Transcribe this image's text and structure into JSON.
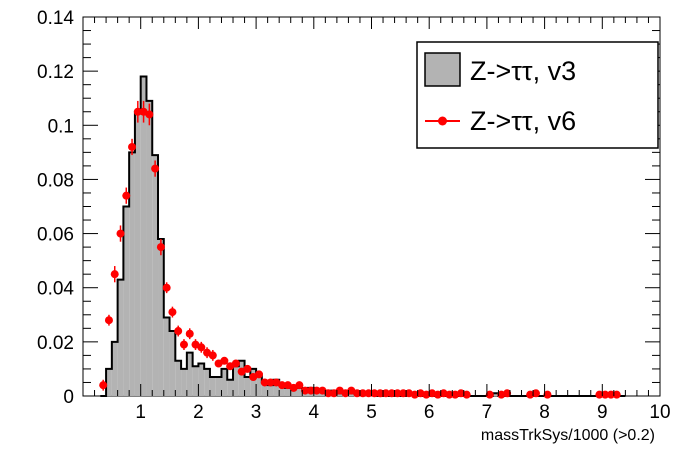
{
  "chart_data": {
    "type": "histogram",
    "title": "",
    "xlabel": "massTrkSys/1000 (>0.2)",
    "ylabel": "",
    "xlim": [
      0,
      10
    ],
    "ylim": [
      0,
      0.14
    ],
    "x_ticks": [
      "1",
      "2",
      "3",
      "4",
      "5",
      "6",
      "7",
      "8",
      "9",
      "10"
    ],
    "y_ticks": [
      "0",
      "0.02",
      "0.04",
      "0.06",
      "0.08",
      "0.1",
      "0.12",
      "0.14"
    ],
    "grid": false,
    "legend_position": "top-right",
    "colors": {
      "v3_fill": "#b3b3b3",
      "v3_line": "#000000",
      "v6": "#ff0000"
    },
    "series": [
      {
        "name": "Z->ττ, v3",
        "style": "filled-step",
        "bin_width": 0.1,
        "bin_starts": [
          0.3,
          0.4,
          0.5,
          0.6,
          0.7,
          0.8,
          0.9,
          1.0,
          1.1,
          1.2,
          1.3,
          1.4,
          1.5,
          1.6,
          1.7,
          1.8,
          1.9,
          2.0,
          2.1,
          2.2,
          2.3,
          2.4,
          2.5,
          2.6,
          2.7,
          2.8,
          2.9,
          3.0,
          3.1,
          3.2,
          3.3,
          3.4,
          3.5,
          3.6,
          3.7,
          3.8,
          3.9,
          4.0,
          4.1,
          4.2,
          4.3,
          4.4,
          4.5,
          4.6,
          4.7,
          4.8,
          4.9,
          5.0,
          5.1,
          5.2,
          5.3,
          5.4,
          5.5,
          5.6,
          5.7,
          5.8,
          5.9,
          6.0,
          6.1,
          6.2,
          6.3,
          6.4,
          6.5,
          6.6,
          6.7,
          6.8,
          6.9,
          7.0,
          7.1,
          7.2,
          7.3,
          7.4,
          7.5,
          7.6,
          7.7,
          7.8,
          7.9,
          8.0,
          8.1,
          8.2,
          8.3,
          8.4,
          8.5,
          8.6,
          8.7,
          8.8,
          8.9,
          9.0,
          9.1,
          9.2,
          9.3
        ],
        "values": [
          0.0,
          0.01,
          0.02,
          0.043,
          0.07,
          0.09,
          0.105,
          0.118,
          0.109,
          0.089,
          0.058,
          0.029,
          0.024,
          0.013,
          0.01,
          0.016,
          0.011,
          0.012,
          0.01,
          0.007,
          0.007,
          0.01,
          0.006,
          0.011,
          0.013,
          0.007,
          0.01,
          0.008,
          0.005,
          0.004,
          0.006,
          0.004,
          0.003,
          0.003,
          0.003,
          0.002,
          0.003,
          0.002,
          0.002,
          0.001,
          0.002,
          0.001,
          0.001,
          0.001,
          0.001,
          0.001,
          0.001,
          0.001,
          0.0,
          0.001,
          0.0,
          0.001,
          0.0,
          0.001,
          0.001,
          0.0,
          0.001,
          0.0,
          0.0,
          0.0,
          0.001,
          0.0,
          0.0,
          0.0,
          0.0,
          0.0,
          0.0,
          0.0,
          0.001,
          0.0,
          0.0,
          0.0,
          0.0,
          0.0,
          0.0,
          0.0,
          0.0,
          0.0,
          0.0,
          0.0,
          0.0,
          0.0,
          0.0,
          0.0,
          0.0,
          0.0,
          0.0,
          0.0,
          0.0,
          0.0,
          0.0
        ]
      },
      {
        "name": "Z->ττ, v6",
        "style": "points-with-errors",
        "x": [
          0.35,
          0.45,
          0.55,
          0.65,
          0.75,
          0.85,
          0.95,
          1.05,
          1.15,
          1.25,
          1.35,
          1.45,
          1.55,
          1.65,
          1.75,
          1.85,
          1.95,
          2.05,
          2.15,
          2.25,
          2.35,
          2.45,
          2.55,
          2.65,
          2.75,
          2.85,
          2.95,
          3.05,
          3.15,
          3.25,
          3.35,
          3.45,
          3.55,
          3.65,
          3.75,
          3.85,
          3.95,
          4.05,
          4.15,
          4.25,
          4.35,
          4.45,
          4.55,
          4.65,
          4.75,
          4.85,
          4.95,
          5.05,
          5.15,
          5.25,
          5.35,
          5.45,
          5.55,
          5.65,
          5.75,
          5.85,
          5.95,
          6.05,
          6.15,
          6.25,
          6.35,
          6.45,
          6.55,
          6.65,
          7.05,
          7.25,
          7.35,
          7.75,
          7.85,
          8.05,
          8.95,
          9.05,
          9.15,
          9.25
        ],
        "y": [
          0.004,
          0.028,
          0.045,
          0.06,
          0.074,
          0.092,
          0.105,
          0.105,
          0.104,
          0.084,
          0.055,
          0.04,
          0.031,
          0.024,
          0.019,
          0.023,
          0.019,
          0.018,
          0.016,
          0.015,
          0.012,
          0.013,
          0.011,
          0.012,
          0.009,
          0.01,
          0.007,
          0.008,
          0.005,
          0.005,
          0.005,
          0.004,
          0.004,
          0.003,
          0.004,
          0.002,
          0.002,
          0.002,
          0.002,
          0.001,
          0.001,
          0.002,
          0.001,
          0.002,
          0.001,
          0.001,
          0.001,
          0.001,
          0.001,
          0.001,
          0.001,
          0.001,
          0.001,
          0.001,
          0.0005,
          0.001,
          0.0005,
          0.001,
          0.0005,
          0.001,
          0.0005,
          0.0005,
          0.001,
          0.0005,
          0.0005,
          0.0005,
          0.001,
          0.0005,
          0.001,
          0.0005,
          0.0005,
          0.0005,
          0.0005,
          0.0005
        ],
        "yerr": [
          0.002,
          0.002,
          0.003,
          0.003,
          0.003,
          0.003,
          0.004,
          0.004,
          0.004,
          0.003,
          0.003,
          0.002,
          0.002,
          0.002,
          0.002,
          0.002,
          0.002,
          0.002,
          0.002,
          0.002,
          0.001,
          0.001,
          0.001,
          0.001,
          0.001,
          0.001,
          0.001,
          0.001,
          0.001,
          0.001,
          0.001,
          0.001,
          0.001,
          0.001,
          0.001,
          0.001,
          0.001,
          0.001,
          0.001,
          0.001,
          0.001,
          0.001,
          0.001,
          0.001,
          0.001,
          0.001,
          0.001,
          0.001,
          0.001,
          0.001,
          0.001,
          0.001,
          0.001,
          0.001,
          0.001,
          0.001,
          0.001,
          0.001,
          0.001,
          0.001,
          0.001,
          0.001,
          0.001,
          0.001,
          0.001,
          0.001,
          0.001,
          0.001,
          0.001,
          0.001,
          0.001,
          0.001,
          0.001,
          0.001
        ]
      }
    ]
  }
}
